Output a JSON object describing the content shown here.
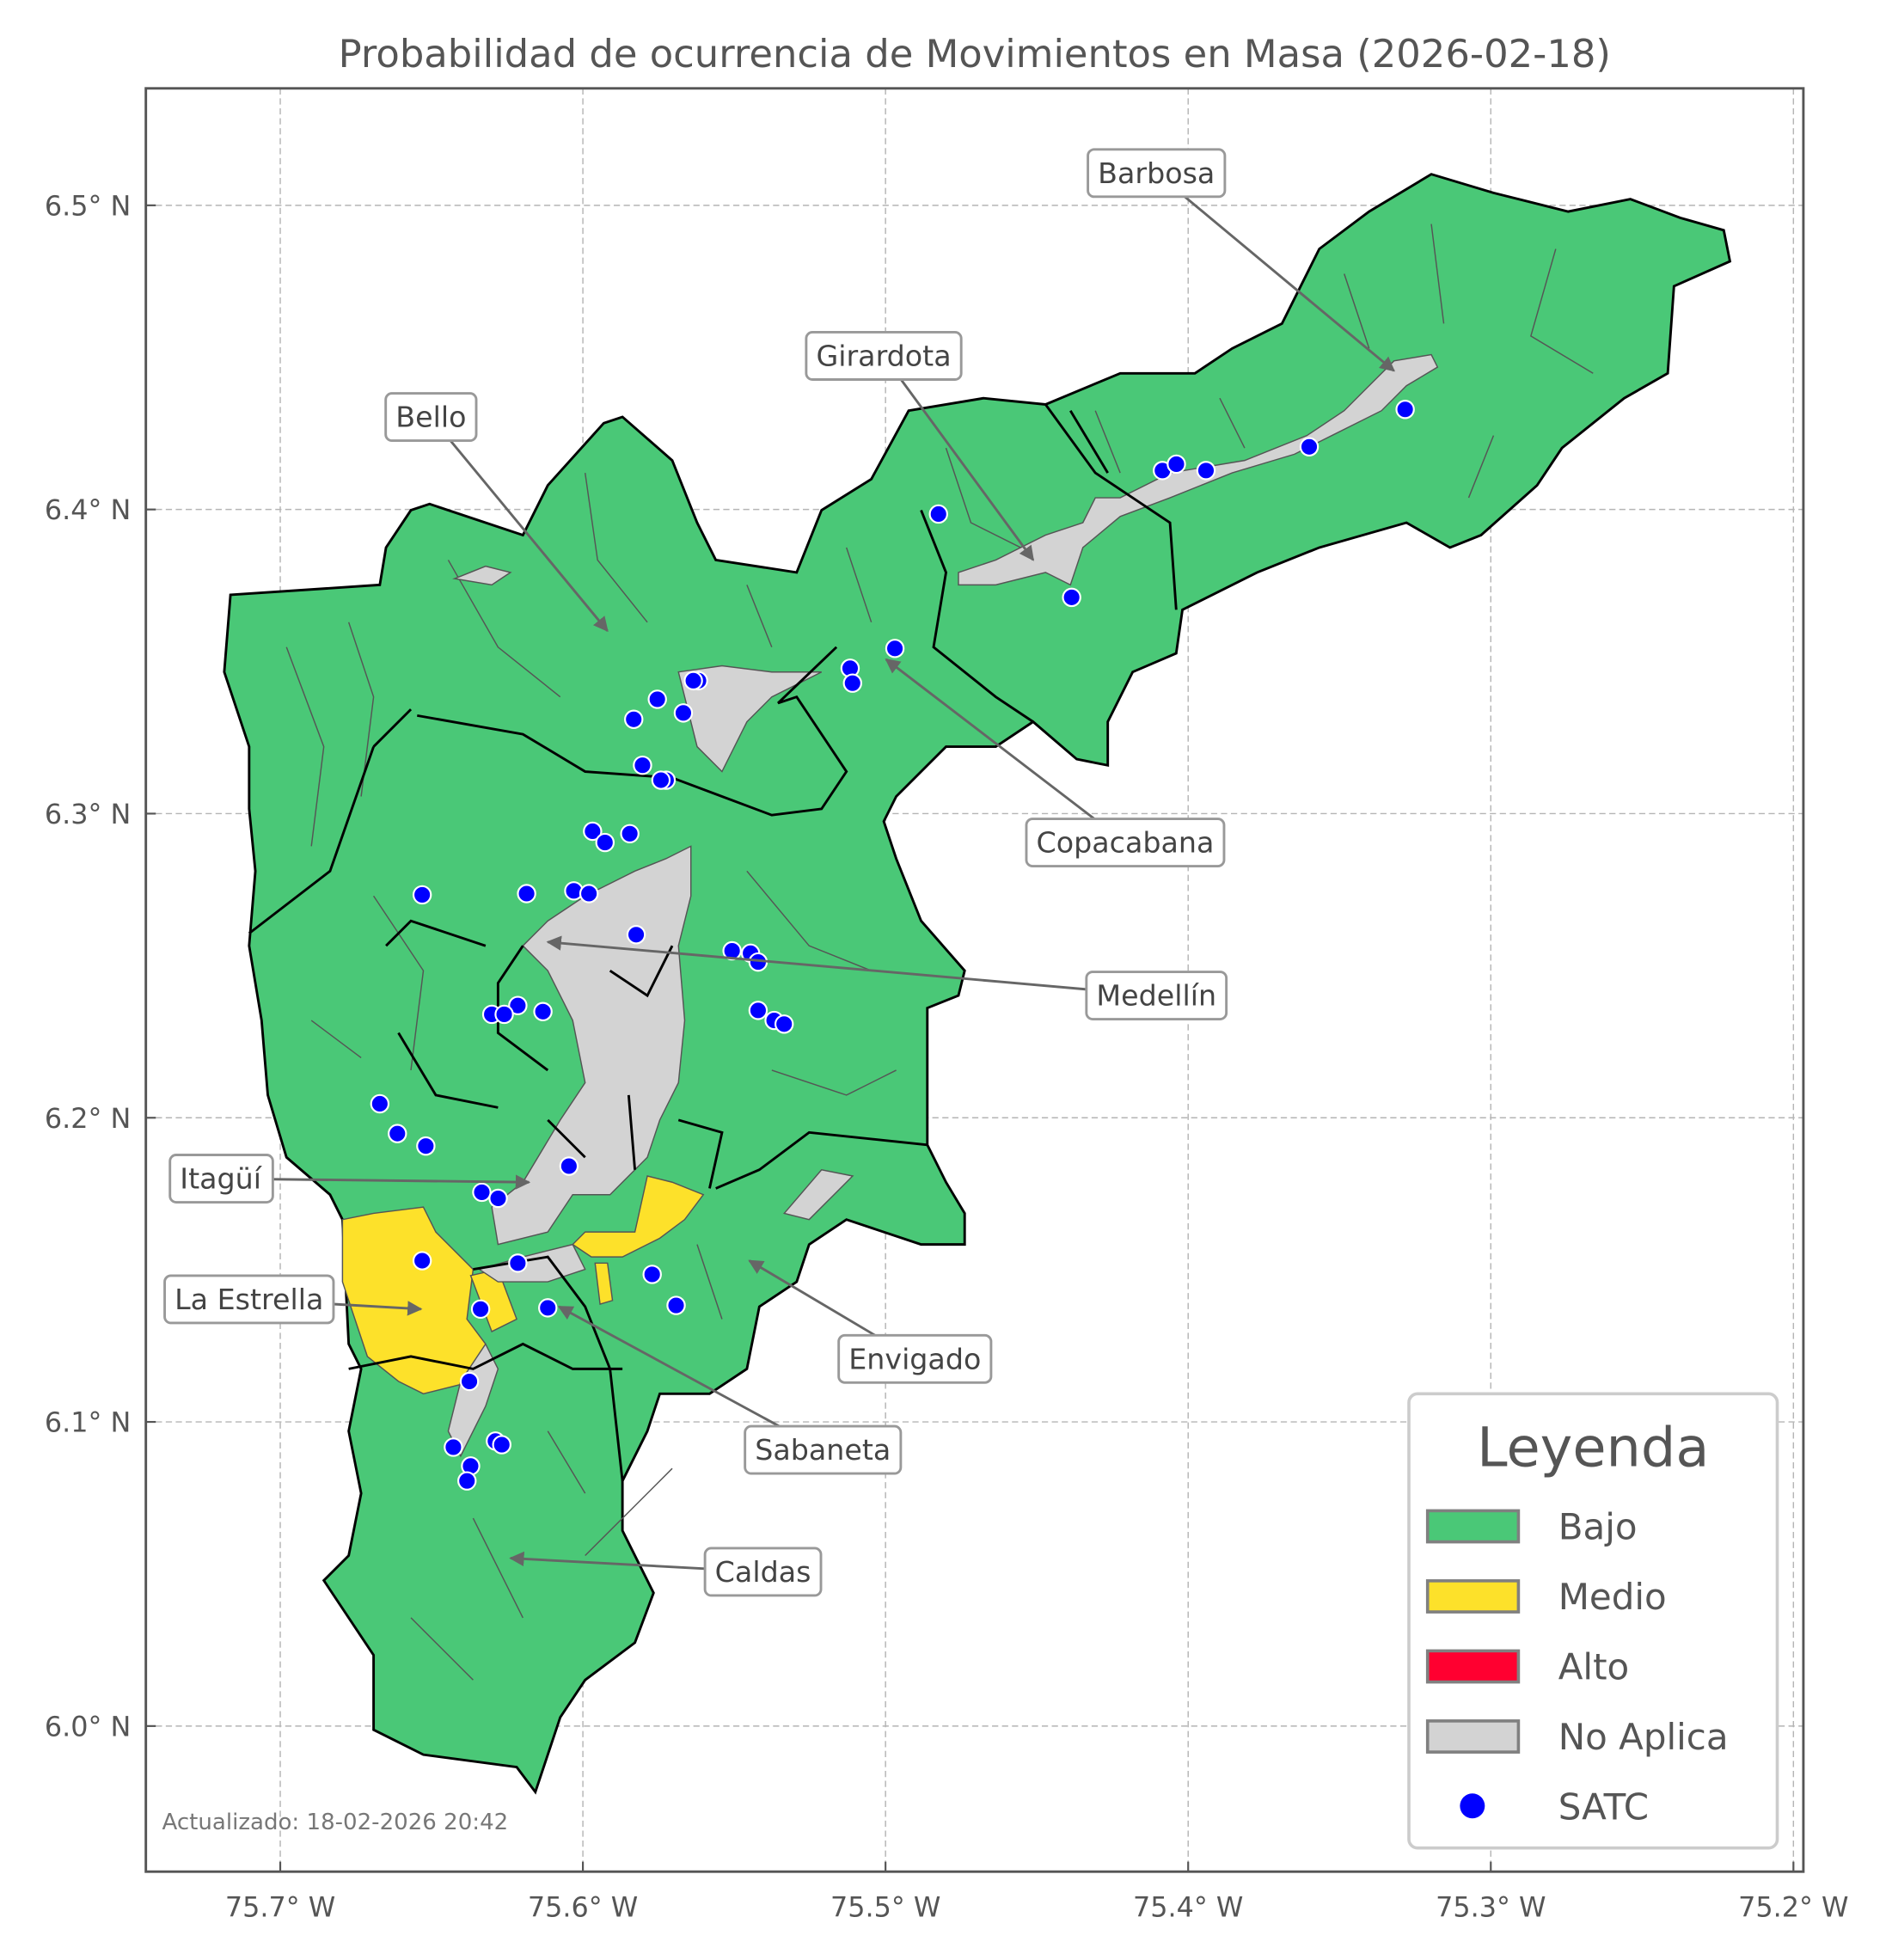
{
  "chart_data": {
    "type": "map",
    "title": "Probabilidad de ocurrencia de Movimientos en Masa (2026-02-18)",
    "xlim": [
      -75.744,
      -75.197
    ],
    "ylim": [
      5.952,
      6.538
    ],
    "grid": true,
    "x_ticks": [
      {
        "value": -75.7,
        "label": "75.7° W"
      },
      {
        "value": -75.6,
        "label": "75.6° W"
      },
      {
        "value": -75.5,
        "label": "75.5° W"
      },
      {
        "value": -75.4,
        "label": "75.4° W"
      },
      {
        "value": -75.3,
        "label": "75.3° W"
      },
      {
        "value": -75.2,
        "label": "75.2° W"
      }
    ],
    "y_ticks": [
      {
        "value": 6.0,
        "label": "6.0° N"
      },
      {
        "value": 6.1,
        "label": "6.1° N"
      },
      {
        "value": 6.2,
        "label": "6.2° N"
      },
      {
        "value": 6.3,
        "label": "6.3° N"
      },
      {
        "value": 6.4,
        "label": "6.4° N"
      },
      {
        "value": 6.5,
        "label": "6.5° N"
      }
    ],
    "legend": {
      "title": "Leyenda",
      "placement": "lower-right",
      "items": [
        {
          "label": "Bajo",
          "color": "#4ac877",
          "kind": "patch"
        },
        {
          "label": "Medio",
          "color": "#fde12a",
          "kind": "patch"
        },
        {
          "label": "Alto",
          "color": "#ff0030",
          "kind": "patch"
        },
        {
          "label": "No Aplica",
          "color": "#d3d3d3",
          "kind": "patch"
        },
        {
          "label": "SATC",
          "color": "#0000ff",
          "kind": "point"
        }
      ]
    },
    "municipality_levels": {
      "Barbosa": "Bajo",
      "Girardota": "Bajo",
      "Copacabana": "Bajo",
      "Bello": "Bajo",
      "Medellín": "Bajo",
      "Itagüí": "Bajo",
      "Envigado": "Bajo / Medio",
      "Sabaneta": "Bajo / Medio",
      "La Estrella": "Medio",
      "Caldas": "Bajo"
    },
    "annotations": [
      {
        "label": "Barbosa",
        "text_lon": -75.4105,
        "text_lat": 6.5106,
        "lon": -75.332,
        "lat": 6.4456
      },
      {
        "label": "Girardota",
        "text_lon": -75.5006,
        "text_lat": 6.4505,
        "lon": -75.4512,
        "lat": 6.3834
      },
      {
        "label": "Bello",
        "text_lon": -75.6502,
        "text_lat": 6.4304,
        "lon": -75.5919,
        "lat": 6.3601
      },
      {
        "label": "Copacabana",
        "text_lon": -75.4208,
        "text_lat": 6.2905,
        "lon": -75.4998,
        "lat": 6.3507
      },
      {
        "label": "Medellín",
        "text_lon": -75.4105,
        "text_lat": 6.2402,
        "lon": -75.6116,
        "lat": 6.2578
      },
      {
        "label": "Itagüí",
        "text_lon": -75.7197,
        "text_lat": 6.18,
        "lon": -75.6178,
        "lat": 6.1788
      },
      {
        "label": "La Estrella",
        "text_lon": -75.7103,
        "text_lat": 6.1403,
        "lon": -75.6535,
        "lat": 6.1371
      },
      {
        "label": "Envigado",
        "text_lon": -75.4903,
        "text_lat": 6.1207,
        "lon": -75.545,
        "lat": 6.153
      },
      {
        "label": "Sabaneta",
        "text_lon": -75.5207,
        "text_lat": 6.0908,
        "lon": -75.6079,
        "lat": 6.1379
      },
      {
        "label": "Caldas",
        "text_lon": -75.5405,
        "text_lat": 6.0507,
        "lon": -75.6239,
        "lat": 6.0552
      }
    ],
    "satc_points": [
      [
        -75.4825,
        6.3985
      ],
      [
        -75.4085,
        6.4128
      ],
      [
        -75.4039,
        6.4149
      ],
      [
        -75.3941,
        6.4128
      ],
      [
        -75.36,
        6.4206
      ],
      [
        -75.3283,
        6.4329
      ],
      [
        -75.4385,
        6.3711
      ],
      [
        -75.4969,
        6.3543
      ],
      [
        -75.5117,
        6.3478
      ],
      [
        -75.5109,
        6.3429
      ],
      [
        -75.5618,
        6.3437
      ],
      [
        -75.5635,
        6.3437
      ],
      [
        -75.5668,
        6.3331
      ],
      [
        -75.5754,
        6.3376
      ],
      [
        -75.5832,
        6.331
      ],
      [
        -75.5803,
        6.3159
      ],
      [
        -75.5725,
        6.311
      ],
      [
        -75.5742,
        6.311
      ],
      [
        -75.5968,
        6.2942
      ],
      [
        -75.5927,
        6.2905
      ],
      [
        -75.5845,
        6.2934
      ],
      [
        -75.6531,
        6.2733
      ],
      [
        -75.6186,
        6.2737
      ],
      [
        -75.603,
        6.2746
      ],
      [
        -75.598,
        6.2737
      ],
      [
        -75.5824,
        6.2602
      ],
      [
        -75.5507,
        6.2549
      ],
      [
        -75.5446,
        6.2541
      ],
      [
        -75.5421,
        6.2512
      ],
      [
        -75.5421,
        6.2353
      ],
      [
        -75.5368,
        6.232
      ],
      [
        -75.5335,
        6.2308
      ],
      [
        -75.6215,
        6.2369
      ],
      [
        -75.6132,
        6.2349
      ],
      [
        -75.6301,
        6.234
      ],
      [
        -75.626,
        6.234
      ],
      [
        -75.6671,
        6.2046
      ],
      [
        -75.6613,
        6.1948
      ],
      [
        -75.6519,
        6.1907
      ],
      [
        -75.6046,
        6.1841
      ],
      [
        -75.6334,
        6.1755
      ],
      [
        -75.628,
        6.1735
      ],
      [
        -75.6531,
        6.153
      ],
      [
        -75.6215,
        6.1522
      ],
      [
        -75.5771,
        6.1485
      ],
      [
        -75.5692,
        6.1383
      ],
      [
        -75.6116,
        6.1375
      ],
      [
        -75.6338,
        6.1371
      ],
      [
        -75.6375,
        6.1133
      ],
      [
        -75.6428,
        6.0917
      ],
      [
        -75.6289,
        6.0937
      ],
      [
        -75.6268,
        6.0925
      ],
      [
        -75.6371,
        6.0855
      ],
      [
        -75.6383,
        6.0806
      ]
    ]
  },
  "footer": {
    "updated": "Actualizado: 18-02-2026 20:42"
  }
}
